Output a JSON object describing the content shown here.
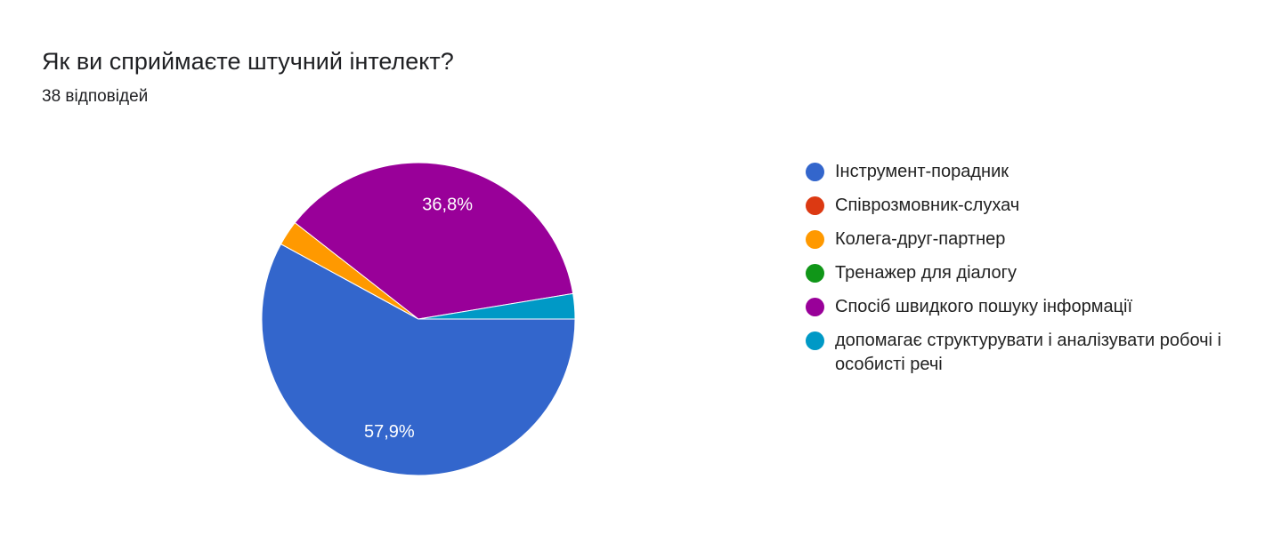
{
  "chart_data": {
    "type": "pie",
    "title": "Як ви сприймаєте штучний інтелект?",
    "subtitle": "38 відповідей",
    "categories": [
      "Інструмент-порадник",
      "Співрозмовник-слухач",
      "Колега-друг-партнер",
      "Тренажер для діалогу",
      "Спосіб швидкого пошуку інформації",
      "допомагає структурувати і аналізувати робочі і особисті речі"
    ],
    "values": [
      57.9,
      0,
      2.6,
      0,
      36.8,
      2.6
    ],
    "value_labels": [
      "57,9%",
      null,
      null,
      null,
      "36,8%",
      null
    ],
    "colors": [
      "#3366cc",
      "#dc3912",
      "#ff9900",
      "#109618",
      "#990099",
      "#0099c6"
    ],
    "legend": "right"
  }
}
